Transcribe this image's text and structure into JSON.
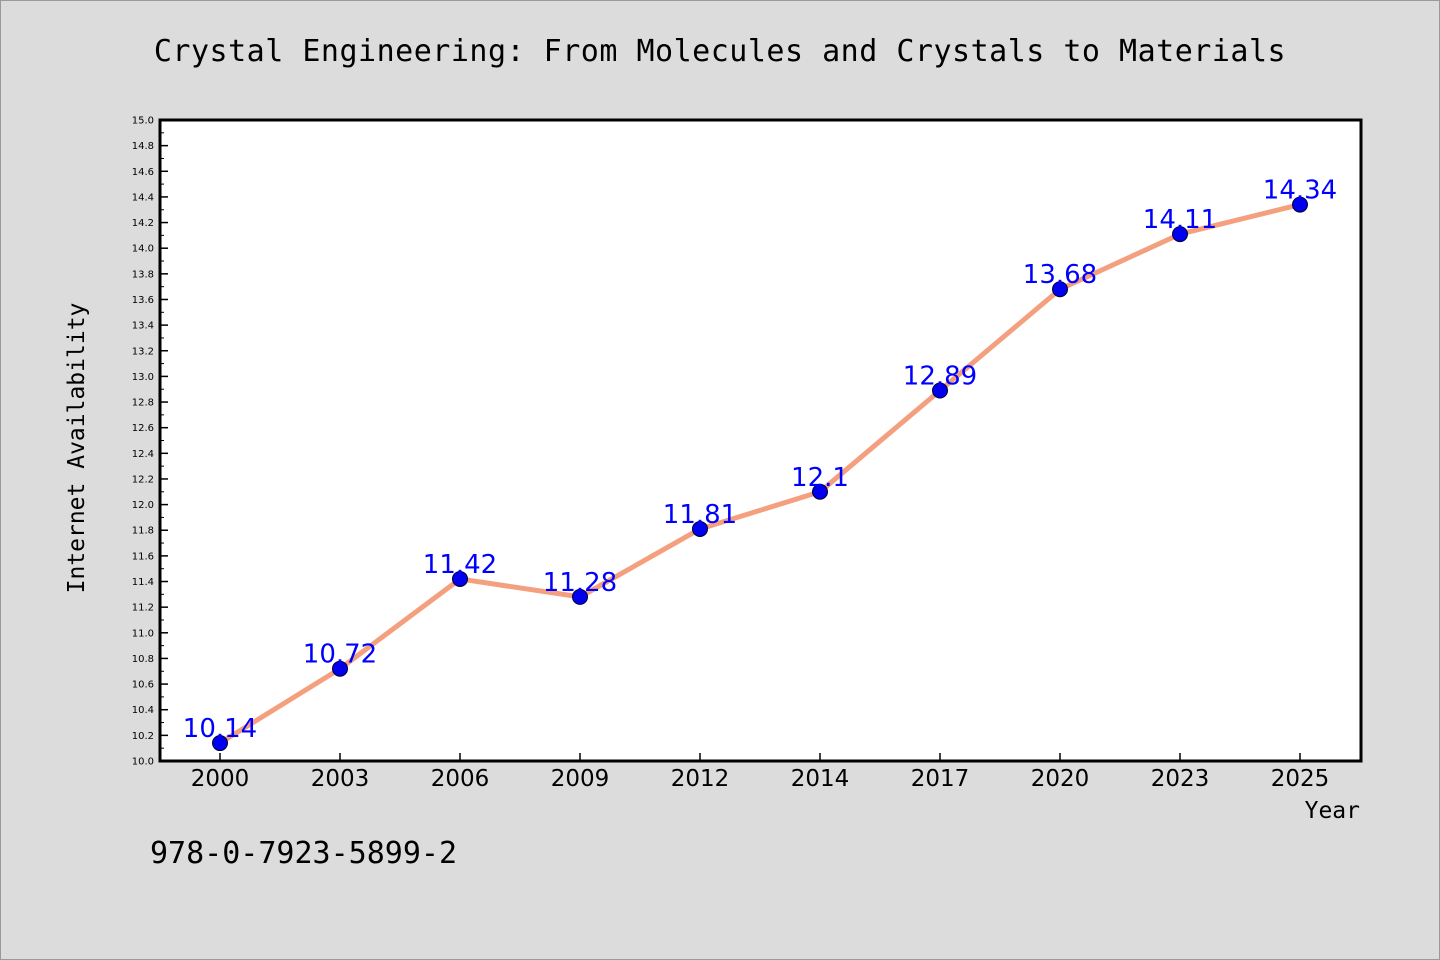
{
  "chart_data": {
    "type": "line",
    "title": "Crystal Engineering: From Molecules and Crystals to Materials",
    "xlabel": "Year",
    "ylabel": "Internet Availability",
    "categories": [
      "2000",
      "2003",
      "2006",
      "2009",
      "2012",
      "2014",
      "2017",
      "2020",
      "2023",
      "2025"
    ],
    "series": [
      {
        "values": [
          10.14,
          10.72,
          11.42,
          11.28,
          11.81,
          12.1,
          12.89,
          13.68,
          14.11,
          14.34
        ],
        "data_labels": [
          "10.14",
          "10.72",
          "11.42",
          "11.28",
          "11.81",
          "12.1",
          "12.89",
          "13.68",
          "14.11",
          "14.34"
        ]
      }
    ],
    "ylim": [
      10.0,
      15.0
    ],
    "yticks": [
      "10.0",
      "10.2",
      "10.4",
      "10.6",
      "10.8",
      "11.0",
      "11.2",
      "11.4",
      "11.6",
      "11.8",
      "12.0",
      "12.2",
      "12.4",
      "12.6",
      "12.8",
      "13.0",
      "13.2",
      "13.4",
      "13.6",
      "13.8",
      "14.0",
      "14.2",
      "14.4",
      "14.6",
      "14.8",
      "15.0"
    ],
    "grid": false,
    "legend": "none",
    "colors": {
      "line": "#f4a07f",
      "marker": "#0000ee",
      "label": "#0000ff",
      "background": "#dcdcdc",
      "plot_background": "#ffffff"
    }
  },
  "footer": {
    "isbn": "978-0-7923-5899-2"
  }
}
